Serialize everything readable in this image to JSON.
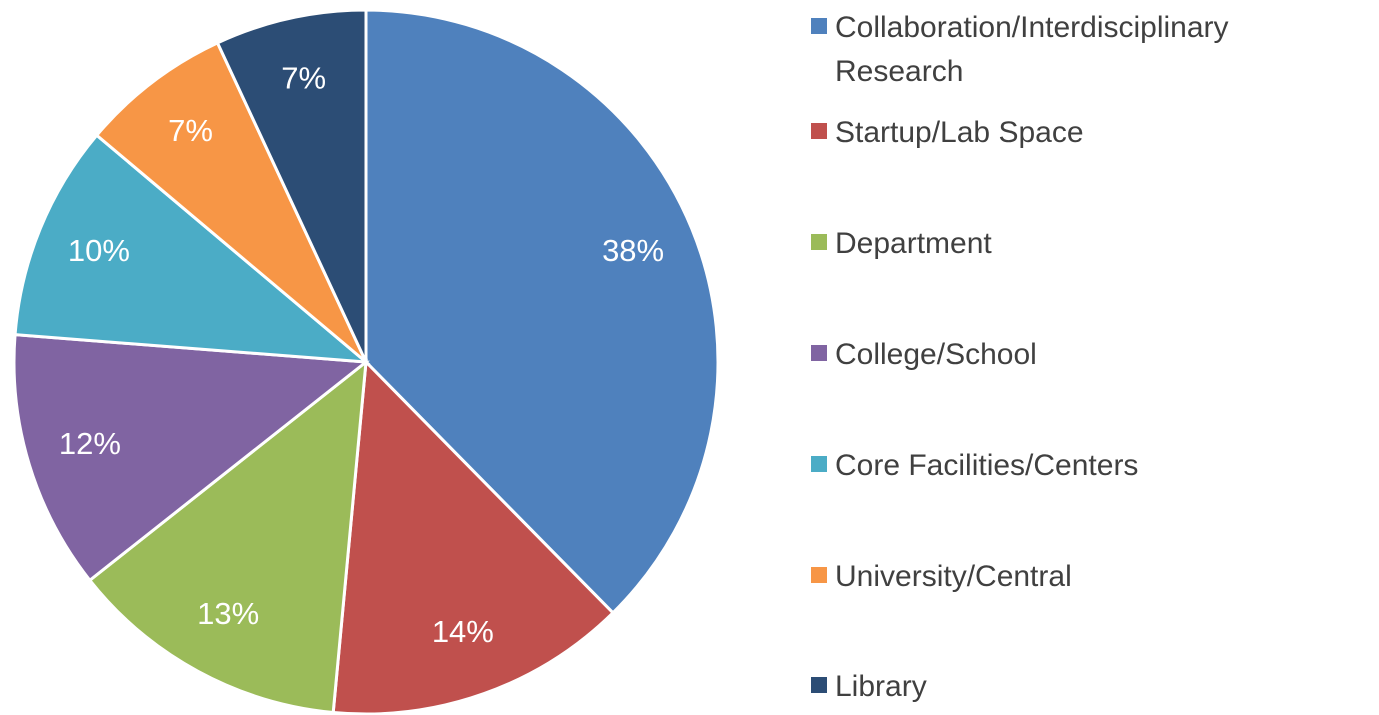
{
  "chart_data": {
    "type": "pie",
    "categories": [
      "Collaboration/Interdisciplinary Research",
      "Startup/Lab Space",
      "Department",
      "College/School",
      "Core Facilities/Centers",
      "University/Central",
      "Library"
    ],
    "values": [
      38,
      14,
      13,
      12,
      10,
      7,
      7
    ],
    "value_labels": [
      "38%",
      "14%",
      "13%",
      "12%",
      "10%",
      "7%",
      "7%"
    ],
    "colors": [
      "#4f81bd",
      "#c0504d",
      "#9bbb59",
      "#8064a2",
      "#4bacc6",
      "#f79646",
      "#2c4d75"
    ],
    "legend": "right"
  }
}
